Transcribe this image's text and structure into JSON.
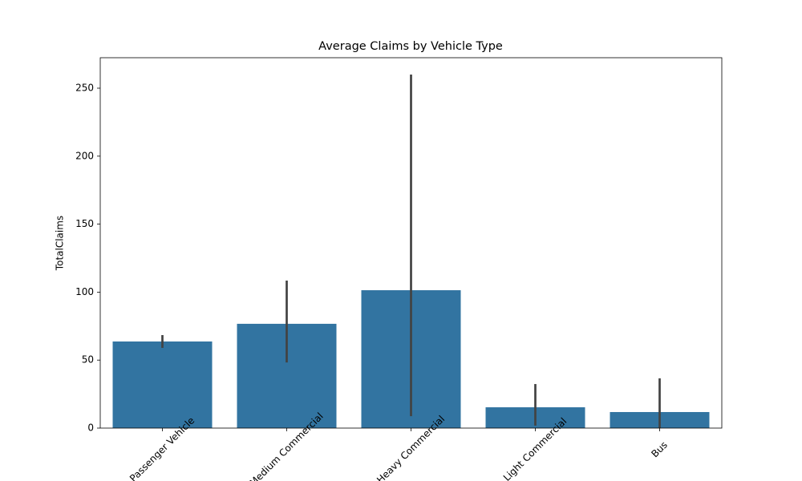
{
  "chart_data": {
    "type": "bar",
    "title": "Average Claims by Vehicle Type",
    "y_label": "TotalClaims",
    "categories": [
      "Passenger Vehicle",
      "Medium Commercial",
      "Heavy Commercial",
      "Light Commercial",
      "Bus"
    ],
    "values": [
      63.7,
      76.7,
      101.4,
      15.3,
      11.8
    ],
    "ci_low": [
      59.0,
      48.3,
      8.8,
      1.8,
      0
    ],
    "ci_high": [
      68.4,
      108.5,
      260,
      32.4,
      36.6
    ],
    "color": "#3274a1",
    "error_color": "#424242",
    "ylim": [
      0,
      272.4
    ],
    "yticks": [
      0,
      50,
      100,
      150,
      200,
      250
    ],
    "grid": false
  }
}
